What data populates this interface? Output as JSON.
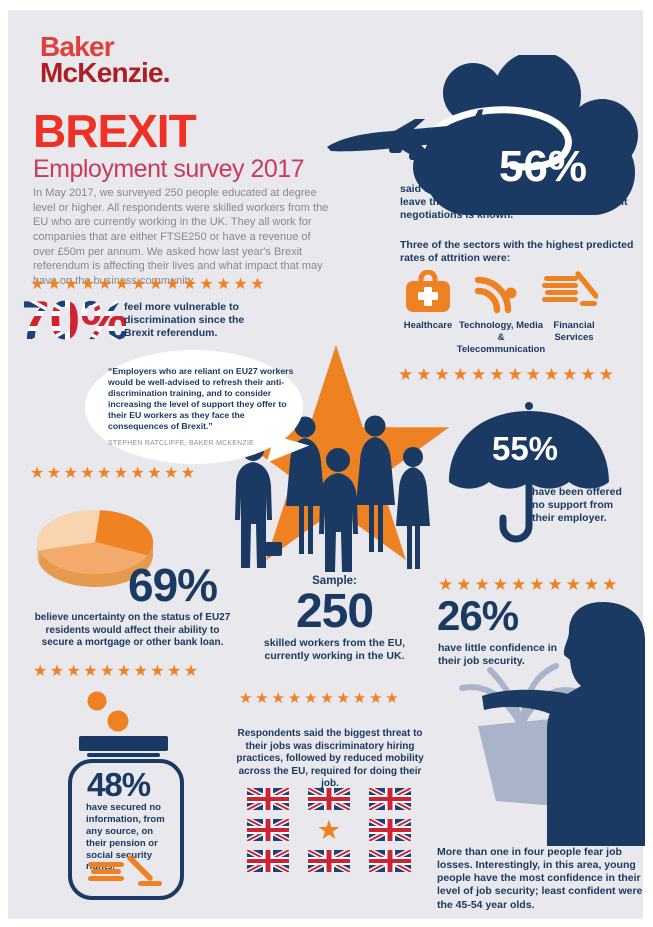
{
  "colors": {
    "navy": "#1a3a64",
    "orange": "#ee8222",
    "background": "#e9e9ed",
    "logo_red": "#e23f3b",
    "logo_dark_red": "#ad1e24",
    "title_red": "#ee3124",
    "subtitle_crimson": "#c63b5e",
    "intro_gray": "#86888d",
    "plant_gray": "#a9b3ca"
  },
  "logo": {
    "line1": "Baker",
    "line2": "McKenzie."
  },
  "header": {
    "title": "BREXIT",
    "subtitle": "Employment survey 2017",
    "intro": "In May 2017, we surveyed 250 people educated at degree level or higher. All respondents were skilled workers from the EU who are currently working in the UK. They all work for companies that are either FTSE250 or have a revenue of over £50m per annum. We asked how last year's Brexit referendum is affecting their lives and what impact that may have on the business community."
  },
  "leave_stat": {
    "value": "56%",
    "text": "said that they were likely or highly likely to leave the UK before the outcome of the Brexit negotiations is known."
  },
  "sectors": {
    "heading": "Three of the sectors with the highest predicted rates of attrition were:",
    "items": [
      {
        "label": "Healthcare",
        "icon": "medical-bag-icon"
      },
      {
        "label": "Technology, Media & Telecommunication",
        "icon": "signal-icon"
      },
      {
        "label": "Financial Services",
        "icon": "money-pen-icon"
      }
    ]
  },
  "vulnerable_stat": {
    "value": "70%",
    "text": "feel more vulnerable to discrimination since the Brexit referendum."
  },
  "quote": {
    "text": "“Employers who are reliant on EU27 workers would be well-advised to refresh their anti-discrimination training, and to consider increasing the level of support they offer to their EU workers as they face the consequences of Brexit.”",
    "attribution": "STEPHEN RATCLIFFE, BAKER MCKENZIE"
  },
  "support_stat": {
    "value": "55%",
    "text": "have been offered no support from their employer."
  },
  "mortgage_stat": {
    "value": "69%",
    "text": "believe uncertainty on the status of EU27 residents would affect their ability to secure a mortgage or other bank loan."
  },
  "sample": {
    "label": "Sample:",
    "value": "250",
    "text": "skilled workers from the EU, currently working in the UK."
  },
  "confidence_stat": {
    "value": "26%",
    "text": "have little confidence in their job security."
  },
  "pension_stat": {
    "value": "48%",
    "text": "have secured no information, from any source, on their pension or social security rights."
  },
  "threat": {
    "text": "Respondents said the biggest threat to their jobs was discriminatory hiring practices, followed by reduced mobility across the EU, required for doing their job."
  },
  "job_losses": {
    "text": "More than one in four people fear job losses. Interestingly, in this area, young people have the most confidence in their level of job security; least confident were the 45-54 year olds."
  },
  "star_rows": {
    "row1": 14,
    "row2": 12,
    "row3": 10,
    "row4": 10,
    "row5": 10,
    "row6": 10
  },
  "flag_grid": {
    "cells": [
      "flag",
      "flag",
      "flag",
      "flag",
      "star",
      "flag",
      "flag",
      "flag",
      "flag"
    ]
  },
  "chart_data": {
    "type": "pie",
    "context": "Decorative 3D pie accompanying the 69% mortgage-uncertainty statistic",
    "headline_value": "69%",
    "slices": [
      {
        "label": "bright orange segment",
        "value": 31,
        "color": "#ef8222"
      },
      {
        "label": "medium orange segment",
        "value": 39,
        "color": "#f3aa6a"
      },
      {
        "label": "light peach segment",
        "value": 30,
        "color": "#f8d5ae"
      }
    ],
    "legend": "none",
    "labels_on_chart": "none"
  }
}
